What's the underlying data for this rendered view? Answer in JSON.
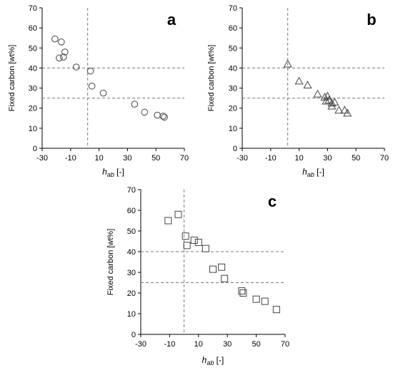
{
  "chart_data": [
    {
      "type": "scatter",
      "panel_label": "a",
      "marker": "circle",
      "xlabel_main": "h",
      "xlabel_sub": "ab",
      "xlabel_unit": " [-]",
      "ylabel": "Fixed carbon [wt%]",
      "xlim": [
        -30,
        70
      ],
      "ylim": [
        0,
        70
      ],
      "xticks": [
        -30,
        -10,
        10,
        30,
        50,
        70
      ],
      "yticks": [
        0,
        10,
        20,
        30,
        40,
        50,
        60,
        70
      ],
      "guides": {
        "vertical": [
          2
        ],
        "horizontal": [
          25,
          40
        ]
      },
      "points": [
        {
          "x": -21,
          "y": 54.5
        },
        {
          "x": -16.5,
          "y": 53
        },
        {
          "x": -14,
          "y": 48
        },
        {
          "x": -18,
          "y": 45
        },
        {
          "x": -15,
          "y": 45.5
        },
        {
          "x": -6,
          "y": 40.5
        },
        {
          "x": 4,
          "y": 38.5
        },
        {
          "x": 5,
          "y": 31
        },
        {
          "x": 13,
          "y": 27.5
        },
        {
          "x": 35,
          "y": 22
        },
        {
          "x": 42,
          "y": 18
        },
        {
          "x": 51,
          "y": 16.5
        },
        {
          "x": 55,
          "y": 16
        },
        {
          "x": 56,
          "y": 15.5
        }
      ]
    },
    {
      "type": "scatter",
      "panel_label": "b",
      "marker": "triangle",
      "xlabel_main": "h",
      "xlabel_sub": "ab",
      "xlabel_unit": " [-]",
      "ylabel": "Fixed carbon [wt%]",
      "xlim": [
        -30,
        70
      ],
      "ylim": [
        0,
        70
      ],
      "xticks": [
        -30,
        -10,
        10,
        30,
        50,
        70
      ],
      "yticks": [
        0,
        10,
        20,
        30,
        40,
        50,
        60,
        70
      ],
      "guides": {
        "vertical": [
          2
        ],
        "horizontal": [
          25,
          40
        ]
      },
      "points": [
        {
          "x": 2,
          "y": 42
        },
        {
          "x": 10,
          "y": 33.5
        },
        {
          "x": 16,
          "y": 31.5
        },
        {
          "x": 23,
          "y": 27
        },
        {
          "x": 28,
          "y": 25.5
        },
        {
          "x": 30,
          "y": 26
        },
        {
          "x": 29,
          "y": 23.5
        },
        {
          "x": 31,
          "y": 24
        },
        {
          "x": 33,
          "y": 22.5
        },
        {
          "x": 35,
          "y": 23
        },
        {
          "x": 33,
          "y": 21
        },
        {
          "x": 38,
          "y": 19
        },
        {
          "x": 42,
          "y": 19
        },
        {
          "x": 44,
          "y": 17.5
        }
      ]
    },
    {
      "type": "scatter",
      "panel_label": "c",
      "marker": "square",
      "xlabel_main": "h",
      "xlabel_sub": "ab",
      "xlabel_unit": " [-]",
      "ylabel": "Fixed carbon [wt%]",
      "xlim": [
        -30,
        70
      ],
      "ylim": [
        0,
        70
      ],
      "xticks": [
        -30,
        -10,
        10,
        30,
        50,
        70
      ],
      "yticks": [
        0,
        10,
        20,
        30,
        40,
        50,
        60,
        70
      ],
      "guides": {
        "vertical": [
          0
        ],
        "horizontal": [
          25,
          40
        ]
      },
      "points": [
        {
          "x": -11,
          "y": 55
        },
        {
          "x": -4,
          "y": 58
        },
        {
          "x": 1,
          "y": 47.5
        },
        {
          "x": 2,
          "y": 43
        },
        {
          "x": 7,
          "y": 45.5
        },
        {
          "x": 10,
          "y": 44.5
        },
        {
          "x": 15,
          "y": 41.5
        },
        {
          "x": 20,
          "y": 31.5
        },
        {
          "x": 26,
          "y": 32.5
        },
        {
          "x": 28,
          "y": 27
        },
        {
          "x": 40,
          "y": 21
        },
        {
          "x": 41,
          "y": 20
        },
        {
          "x": 50,
          "y": 17
        },
        {
          "x": 56,
          "y": 16
        },
        {
          "x": 64,
          "y": 12
        }
      ]
    }
  ]
}
